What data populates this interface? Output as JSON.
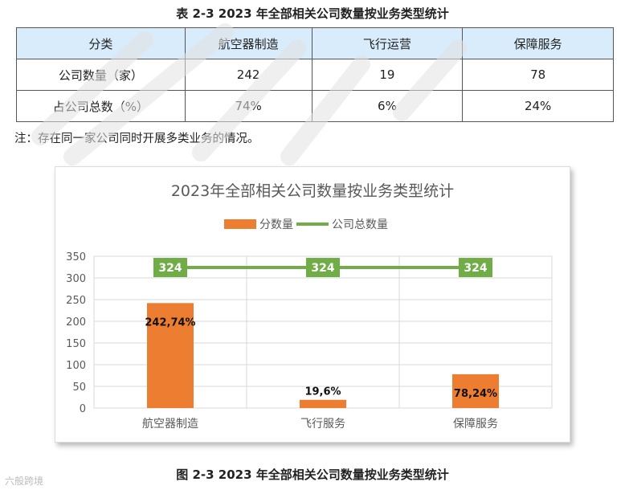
{
  "table": {
    "caption": "表 2-3    2023 年全部相关公司数量按业务类型统计",
    "headers": [
      "分类",
      "航空器制造",
      "飞行运营",
      "保障服务"
    ],
    "rows": [
      [
        "公司数量（家）",
        "242",
        "19",
        "78"
      ],
      [
        "占公司总数（%）",
        "74%",
        "6%",
        "24%"
      ]
    ]
  },
  "note": "注：存在同一家公司同时开展多类业务的情况。",
  "figure_caption": "图 2-3    2023 年全部相关公司数量按业务类型统计",
  "watermark": "六般跨境",
  "chart_data": {
    "type": "bar",
    "title": "2023年全部相关公司数量按业务类型统计",
    "categories": [
      "航空器制造",
      "飞行服务",
      "保障服务"
    ],
    "series": [
      {
        "name": "分数量",
        "kind": "bar",
        "color": "#ed7d31",
        "values": [
          242,
          19,
          78
        ],
        "labels": [
          "242,74%",
          "19,6%",
          "78,24%"
        ]
      },
      {
        "name": "公司总数量",
        "kind": "line",
        "color": "#70ad47",
        "values": [
          324,
          324,
          324
        ],
        "labels": [
          "324",
          "324",
          "324"
        ]
      }
    ],
    "ylim": [
      0,
      350
    ],
    "yticks": [
      0,
      50,
      100,
      150,
      200,
      250,
      300,
      350
    ],
    "grid": true,
    "legend": "top"
  }
}
